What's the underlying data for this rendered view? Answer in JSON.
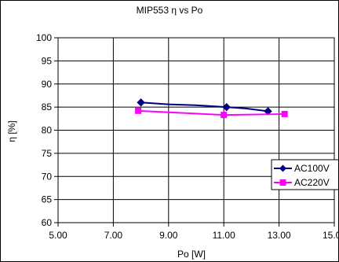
{
  "chart_data": {
    "type": "line",
    "title": "MIP553 η vs Po",
    "xlabel": "Po [W]",
    "ylabel": "η [%]",
    "xlim": [
      5,
      15
    ],
    "ylim": [
      60,
      100
    ],
    "x_ticks": [
      "5.00",
      "7.00",
      "9.00",
      "11.00",
      "13.00",
      "15.00"
    ],
    "y_ticks": [
      "60",
      "65",
      "70",
      "75",
      "80",
      "85",
      "90",
      "95",
      "100"
    ],
    "grid": true,
    "legend_position": "right",
    "series": [
      {
        "name": "AC100V",
        "color": "#000080",
        "marker": "diamond",
        "points": [
          {
            "x": 8.0,
            "y": 86.0
          },
          {
            "x": 9.0,
            "y": 85.6
          },
          {
            "x": 10.0,
            "y": 85.4
          },
          {
            "x": 11.1,
            "y": 85.0
          },
          {
            "x": 11.8,
            "y": 84.7
          },
          {
            "x": 12.6,
            "y": 84.1
          }
        ]
      },
      {
        "name": "AC220V",
        "color": "#ff00ff",
        "marker": "square",
        "points": [
          {
            "x": 7.9,
            "y": 84.2
          },
          {
            "x": 11.0,
            "y": 83.3
          },
          {
            "x": 13.2,
            "y": 83.5
          }
        ]
      }
    ]
  }
}
